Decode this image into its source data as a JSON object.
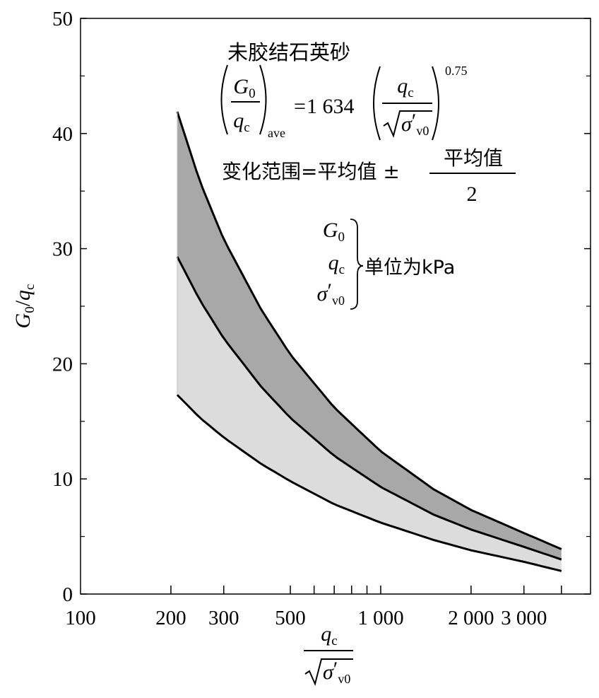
{
  "chart_data": {
    "type": "area",
    "x_scale": "log",
    "xlim": [
      100,
      5000
    ],
    "ylim": [
      0,
      50
    ],
    "x_ticks": [
      100,
      200,
      300,
      500,
      1000,
      2000,
      3000
    ],
    "x_tick_labels": [
      "100",
      "200",
      "300",
      "500",
      "1 000",
      "2 000",
      "3 000"
    ],
    "y_ticks": [
      0,
      10,
      20,
      30,
      40,
      50
    ],
    "y_tick_labels": [
      "0",
      "10",
      "20",
      "30",
      "40",
      "50"
    ],
    "x_minor_ticks": [
      600,
      700,
      800,
      900,
      4000
    ],
    "y_minor_ticks": [
      5,
      15,
      25,
      35,
      45
    ],
    "grid": false,
    "ylabel": {
      "G": "G",
      "sub0": "0",
      "slash": "/",
      "q": "q",
      "subc": "c"
    },
    "xlabel": {
      "q": "q",
      "subc": "c",
      "sigma": "σ",
      "prime": "′",
      "subv0": "v0"
    },
    "series": [
      {
        "name": "",
        "role": "upper",
        "x": [
          210,
          250,
          300,
          400,
          500,
          700,
          1000,
          1500,
          2000,
          3000,
          4000
        ],
        "y": [
          41.9,
          35.8,
          30.8,
          24.7,
          20.8,
          16.2,
          12.4,
          9.1,
          7.3,
          5.3,
          3.9
        ]
      },
      {
        "name": "",
        "role": "average",
        "x": [
          210,
          250,
          300,
          400,
          500,
          700,
          1000,
          1500,
          2000,
          3000,
          4000
        ],
        "y": [
          29.3,
          25.5,
          22.2,
          18.0,
          15.3,
          12.0,
          9.3,
          6.9,
          5.6,
          4.1,
          3.0
        ]
      },
      {
        "name": "",
        "role": "lower",
        "x": [
          210,
          250,
          300,
          400,
          500,
          700,
          1000,
          1500,
          2000,
          3000,
          4000
        ],
        "y": [
          17.3,
          15.3,
          13.6,
          11.3,
          9.8,
          7.8,
          6.2,
          4.7,
          3.8,
          2.8,
          2.0
        ]
      }
    ],
    "band_colors": {
      "upper_band": "#a8a8a8",
      "lower_band": "#dcdcdc",
      "curve": "#000000"
    }
  },
  "annotations": {
    "title": "未胶结石英砂",
    "eq": {
      "G": "G",
      "sub0": "0",
      "q": "q",
      "subc": "c",
      "ave": "ave",
      "equals": "=",
      "coef": "1 634",
      "sigma": "σ",
      "prime": "′",
      "subv0": "v0",
      "exp": "0.75"
    },
    "range": {
      "left": "变化范围=平均值 ±",
      "numer": "平均值",
      "denom": "2"
    },
    "units": {
      "G": "G",
      "sub0": "0",
      "q": "q",
      "subc": "c",
      "sigma": "σ",
      "prime": "′",
      "subv0": "v0",
      "label": "单位为kPa"
    }
  }
}
